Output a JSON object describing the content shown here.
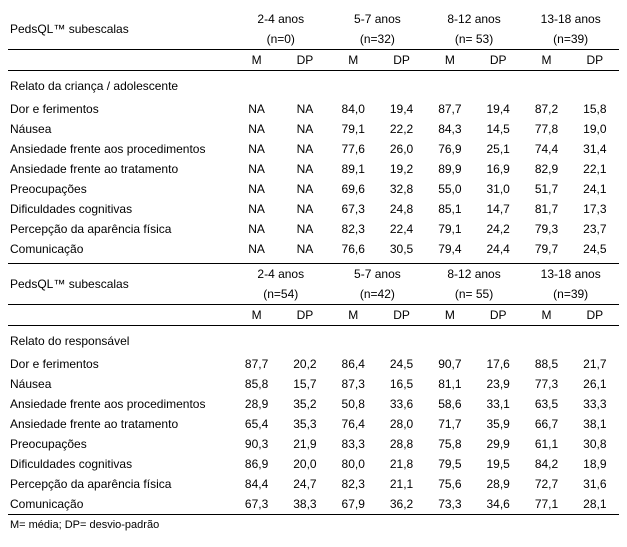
{
  "header": {
    "title": "PedsQL™  subescalas",
    "ageGroups": [
      {
        "label": "2-4 anos",
        "n_child": "(n=0)",
        "n_resp": "(n=54)"
      },
      {
        "label": "5-7 anos",
        "n_child": "(n=32)",
        "n_resp": "(n=42)"
      },
      {
        "label": "8-12 anos",
        "n_child": "(n= 53)",
        "n_resp": "(n= 55)"
      },
      {
        "label": "13-18 anos",
        "n_child": "(n=39)",
        "n_resp": "(n=39)"
      }
    ],
    "m": "M",
    "dp": "DP"
  },
  "sections": {
    "child": "Relato da criança / adolescente",
    "resp": "Relato do responsável"
  },
  "subscales": [
    "Dor e ferimentos",
    "Náusea",
    "Ansiedade frente aos procedimentos",
    "Ansiedade frente ao tratamento",
    "Preocupações",
    "Dificuldades cognitivas",
    "Percepção da aparência física",
    "Comunicação"
  ],
  "child": [
    [
      "NA",
      "NA",
      "84,0",
      "19,4",
      "87,7",
      "19,4",
      "87,2",
      "15,8"
    ],
    [
      "NA",
      "NA",
      "79,1",
      "22,2",
      "84,3",
      "14,5",
      "77,8",
      "19,0"
    ],
    [
      "NA",
      "NA",
      "77,6",
      "26,0",
      "76,9",
      "25,1",
      "74,4",
      "31,4"
    ],
    [
      "NA",
      "NA",
      "89,1",
      "19,2",
      "89,9",
      "16,9",
      "82,9",
      "22,1"
    ],
    [
      "NA",
      "NA",
      "69,6",
      "32,8",
      "55,0",
      "31,0",
      "51,7",
      "24,1"
    ],
    [
      "NA",
      "NA",
      "67,3",
      "24,8",
      "85,1",
      "14,7",
      "81,7",
      "17,3"
    ],
    [
      "NA",
      "NA",
      "82,3",
      "22,4",
      "79,1",
      "24,2",
      "79,3",
      "23,7"
    ],
    [
      "NA",
      "NA",
      "76,6",
      "30,5",
      "79,4",
      "24,4",
      "79,7",
      "24,5"
    ]
  ],
  "resp": [
    [
      "87,7",
      "20,2",
      "86,4",
      "24,5",
      "90,7",
      "17,6",
      "88,5",
      "21,7"
    ],
    [
      "85,8",
      "15,7",
      "87,3",
      "16,5",
      "81,1",
      "23,9",
      "77,3",
      "26,1"
    ],
    [
      "28,9",
      "35,2",
      "50,8",
      "33,6",
      "58,6",
      "33,1",
      "63,5",
      "33,3"
    ],
    [
      "65,4",
      "35,3",
      "76,4",
      "28,0",
      "71,7",
      "35,9",
      "66,7",
      "38,1"
    ],
    [
      "90,3",
      "21,9",
      "83,3",
      "28,8",
      "75,8",
      "29,9",
      "61,1",
      "30,8"
    ],
    [
      "86,9",
      "20,0",
      "80,0",
      "21,8",
      "79,5",
      "19,5",
      "84,2",
      "18,9"
    ],
    [
      "84,4",
      "24,7",
      "82,3",
      "21,1",
      "75,6",
      "28,9",
      "72,7",
      "31,6"
    ],
    [
      "67,3",
      "38,3",
      "67,9",
      "36,2",
      "73,3",
      "34,6",
      "77,1",
      "28,1"
    ]
  ],
  "footnote": "M= média; DP= desvio-padrão",
  "style": {
    "colWidthLabel": 223,
    "colWidthVal": 48,
    "fontSize": 12,
    "borderColor": "#000000",
    "bg": "#ffffff",
    "text": "#000000"
  }
}
